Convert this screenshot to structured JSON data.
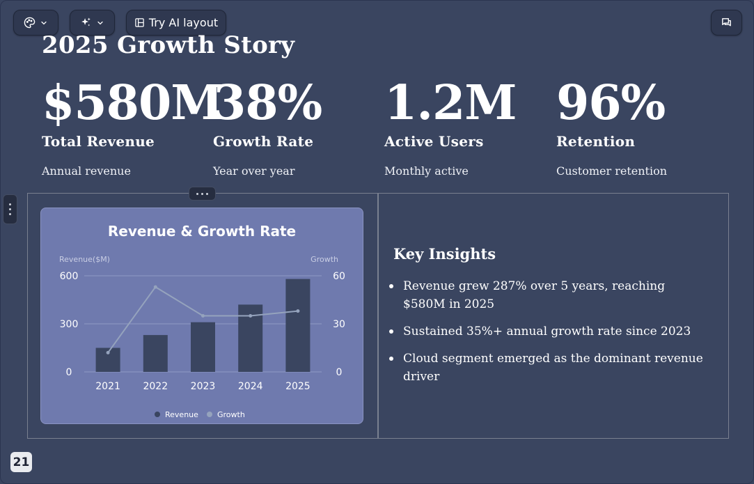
{
  "toolbar": {
    "theme_icon": "palette-icon",
    "ai_icon": "sparkles-icon",
    "layout_icon": "layout-icon",
    "try_ai_layout_label": "Try AI layout",
    "comments_icon": "comment-icon"
  },
  "slide": {
    "title": "2025 Growth Story",
    "stats": [
      {
        "value": "$580M",
        "label": "Total Revenue",
        "sub": "Annual revenue"
      },
      {
        "value": "38%",
        "label": "Growth Rate",
        "sub": "Year over year"
      },
      {
        "value": "1.2M",
        "label": "Active Users",
        "sub": "Monthly active"
      },
      {
        "value": "96%",
        "label": "Retention",
        "sub": "Customer retention"
      }
    ],
    "insights": {
      "title": "Key Insights",
      "items": [
        "Revenue grew 287% over 5 years, reaching $580M in 2025",
        "Sustained 35%+ annual growth rate since 2023",
        "Cloud segment emerged as the dominant revenue driver"
      ]
    },
    "page_number": "21"
  },
  "chart_data": {
    "type": "bar",
    "title": "Revenue & Growth Rate",
    "categories": [
      "2021",
      "2022",
      "2023",
      "2024",
      "2025"
    ],
    "series": [
      {
        "name": "Revenue",
        "type": "bar",
        "axis": "left",
        "color": "#3a4560",
        "values": [
          150,
          230,
          310,
          420,
          580
        ]
      },
      {
        "name": "Growth",
        "type": "line",
        "axis": "right",
        "color": "#95a3bd",
        "values": [
          12,
          53,
          35,
          35,
          38
        ]
      }
    ],
    "ylabel": "Revenue($M)",
    "y2label": "Growth",
    "ylim": [
      0,
      600
    ],
    "y2lim": [
      0,
      60
    ],
    "yticks": [
      0,
      300,
      600
    ],
    "y2ticks": [
      0,
      30,
      60
    ],
    "grid": true,
    "legend": "bottom-center"
  }
}
